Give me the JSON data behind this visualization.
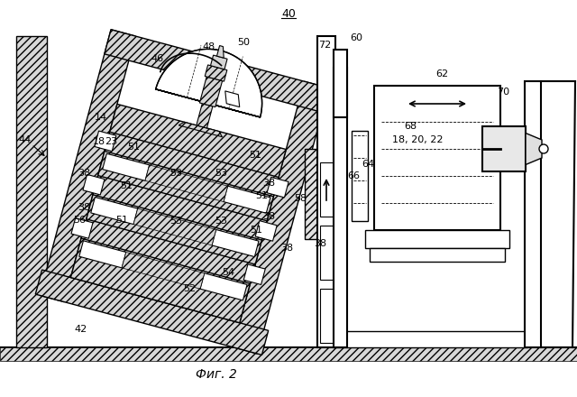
{
  "title": "40",
  "caption": "Фиг. 2",
  "bg_color": "#ffffff",
  "lc": "#000000",
  "lw": 1.0,
  "lw2": 1.5,
  "hatch_lw": 0.5
}
